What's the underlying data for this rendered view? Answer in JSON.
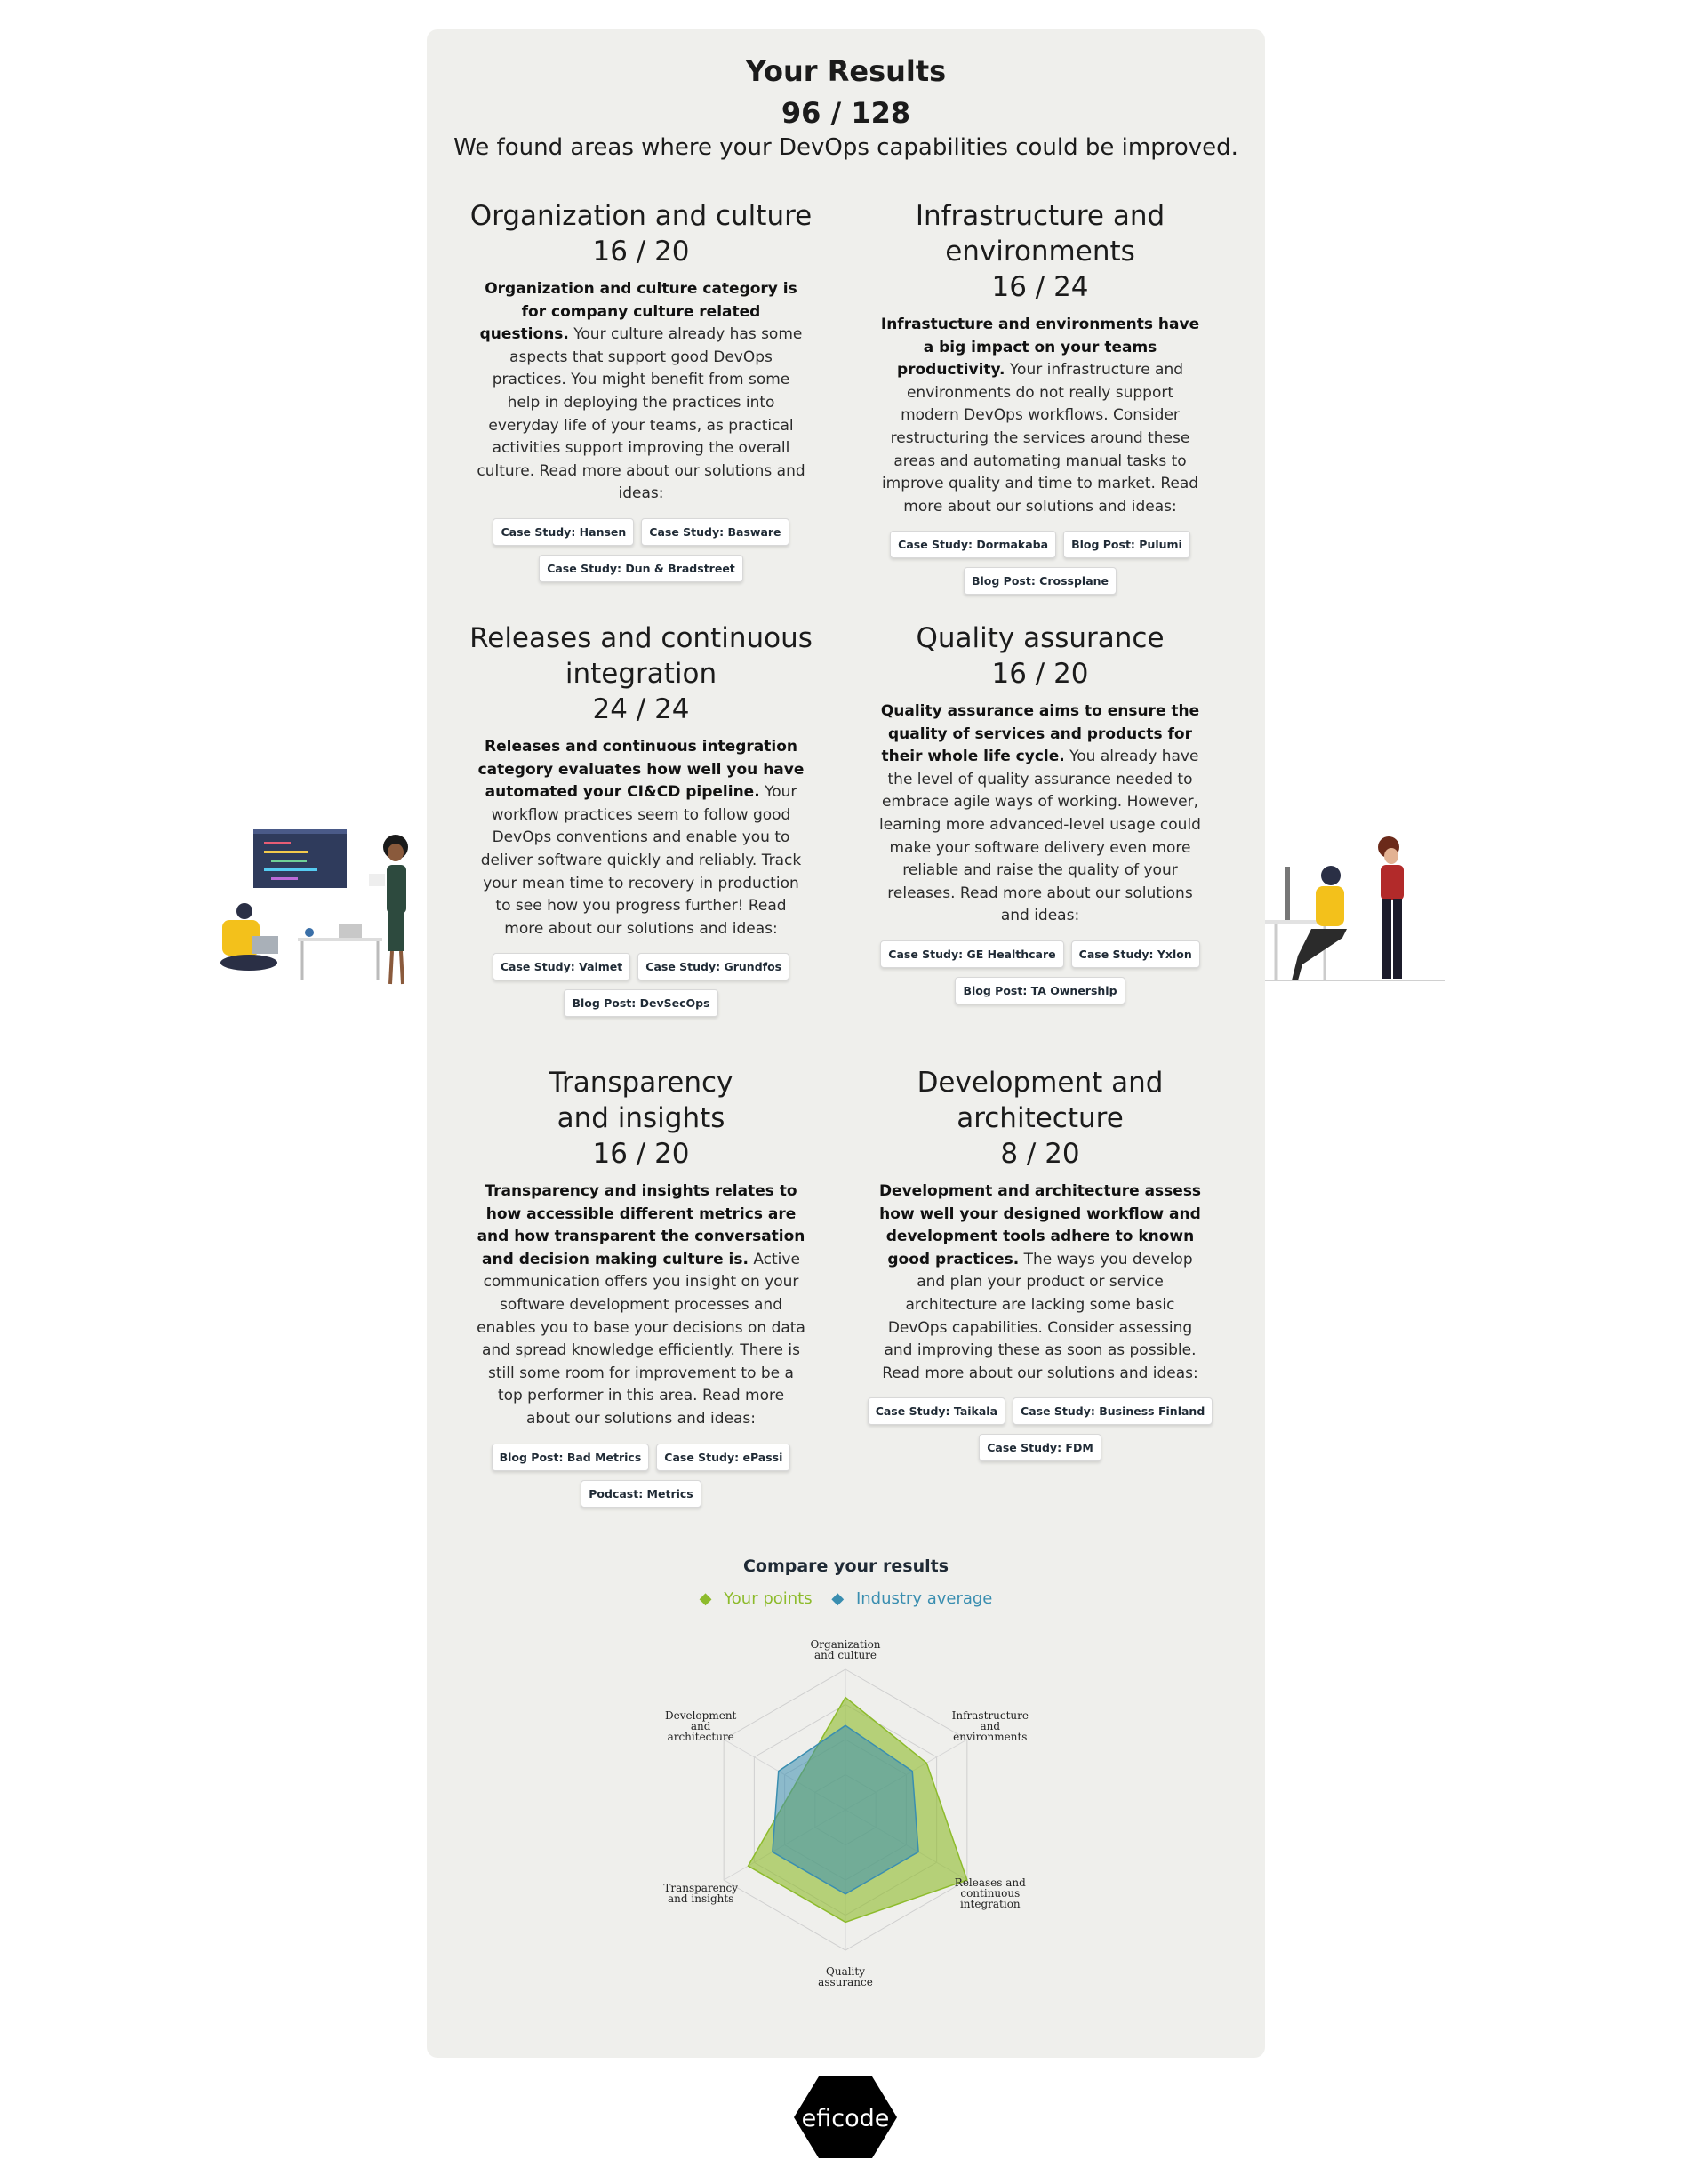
{
  "header": {
    "title": "Your Results",
    "score": "96 / 128",
    "subtitle": "We found areas where your DevOps capabilities could be improved."
  },
  "categories": [
    {
      "title": "Organization and culture",
      "score": "16 / 20",
      "bold": "Organization and culture category is for company culture related questions.",
      "text": " Your culture already has some aspects that support good DevOps practices. You might benefit from some help in deploying the practices into everyday life of your teams, as practical activities support improving the overall culture. Read more about our solutions and ideas:",
      "links": [
        "Case Study: Hansen",
        "Case Study: Basware",
        "Case Study: Dun & Bradstreet"
      ]
    },
    {
      "title": "Infrastructure and environments",
      "score": "16 / 24",
      "bold": "Infrastucture and environments have a big impact on your teams productivity.",
      "text": " Your infrastructure and environments do not really support modern DevOps workflows. Consider restructuring the services around these areas and automating manual tasks to improve quality and time to market. Read more about our solutions and ideas:",
      "links": [
        "Case Study: Dormakaba",
        "Blog Post: Pulumi",
        "Blog Post: Crossplane"
      ]
    },
    {
      "title": "Releases and continuous integration",
      "score": "24 / 24",
      "bold": "Releases and continuous integration category evaluates how well you have automated your CI&CD pipeline.",
      "text": " Your workflow practices seem to follow good DevOps conventions and enable you to deliver software quickly and reliably. Track your mean time to recovery in production to see how you progress further! Read more about our solutions and ideas:",
      "links": [
        "Case Study: Valmet",
        "Case Study: Grundfos",
        "Blog Post: DevSecOps"
      ]
    },
    {
      "title": "Quality assurance",
      "score": "16 / 20",
      "bold": "Quality assurance aims to ensure the quality of services and products for their whole life cycle.",
      "text": " You already have the level of quality assurance needed to embrace agile ways of working. However, learning more advanced-level usage could make your software delivery even more reliable and raise the quality of your releases. Read more about our solutions and ideas:",
      "links": [
        "Case Study: GE Healthcare",
        "Case Study: Yxlon",
        "Blog Post: TA Ownership"
      ]
    },
    {
      "title": "Transparency and insights",
      "score": "16 / 20",
      "bold": "Transparency and insights relates to how accessible different metrics are and how transparent the conversation and decision making culture is.",
      "text": " Active communication offers you insight on your software development processes and enables you to base your decisions on data and spread knowledge efficiently. There is still some room for improvement to be a top performer in this area. Read more about our solutions and ideas:",
      "links": [
        "Blog Post: Bad Metrics",
        "Case Study: ePassi",
        "Podcast: Metrics"
      ]
    },
    {
      "title": "Development and architecture",
      "score": "8 / 20",
      "bold": "Development and architecture assess how well your designed workflow and development tools adhere to known good practices.",
      "text": " The ways you develop and plan your product or service architecture are lacking some basic DevOps capabilities. Consider assessing and improving these as soon as possible. Read more about our solutions and ideas:",
      "links": [
        "Case Study: Taikala",
        "Case Study: Business Finland",
        "Case Study: FDM"
      ]
    }
  ],
  "compare": {
    "title": "Compare your results",
    "legend_yours": "Your points",
    "legend_industry": "Industry average",
    "color_yours": "#8dbb2c",
    "color_industry": "#3a8eb0"
  },
  "chart_data": {
    "type": "radar",
    "categories": [
      "Organization and culture",
      "Infrastructure and environments",
      "Releases and continuous integration",
      "Quality assurance",
      "Transparency and insights",
      "Development and architecture"
    ],
    "max": 1,
    "series": [
      {
        "name": "Your points",
        "values": [
          0.8,
          0.667,
          1.0,
          0.8,
          0.8,
          0.4
        ]
      },
      {
        "name": "Industry average",
        "values": [
          0.6,
          0.55,
          0.6,
          0.6,
          0.6,
          0.55
        ]
      }
    ]
  },
  "logo": {
    "text": "eficode"
  }
}
